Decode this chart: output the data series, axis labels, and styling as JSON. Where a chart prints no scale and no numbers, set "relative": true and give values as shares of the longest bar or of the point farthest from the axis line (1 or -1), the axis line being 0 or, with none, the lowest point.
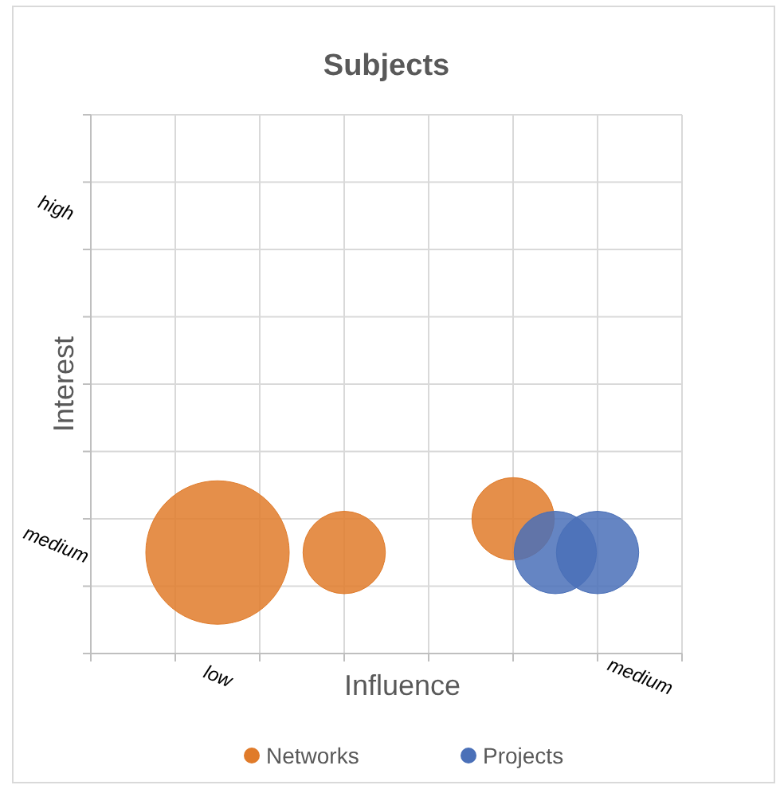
{
  "chart_data": {
    "type": "bubble",
    "title": "Subjects",
    "xlabel": "Influence",
    "ylabel": "Interest",
    "relative": true,
    "categories": [
      null,
      null,
      "low",
      null,
      null,
      null,
      null,
      null,
      null,
      null,
      null,
      null,
      "medium"
    ],
    "annotations": [
      "medium",
      "high"
    ],
    "grid": true,
    "legend": "bottom",
    "series": [
      {
        "name": "Networks",
        "color": "#e07b2a",
        "values": [
          null,
          null,
          0.75,
          null,
          null,
          0.75,
          null,
          null,
          null,
          1,
          null,
          null,
          null
        ],
        "sizes": [
          null,
          null,
          1,
          null,
          null,
          0.33,
          null,
          null,
          null,
          0.33,
          null,
          null,
          null
        ]
      },
      {
        "name": "Projects",
        "color": "#4a70b8",
        "values": [
          null,
          null,
          null,
          null,
          null,
          null,
          null,
          null,
          null,
          null,
          0.75,
          0.75,
          null
        ],
        "sizes": [
          null,
          null,
          null,
          null,
          null,
          null,
          null,
          null,
          null,
          null,
          0.33,
          0.33,
          null
        ]
      }
    ]
  }
}
